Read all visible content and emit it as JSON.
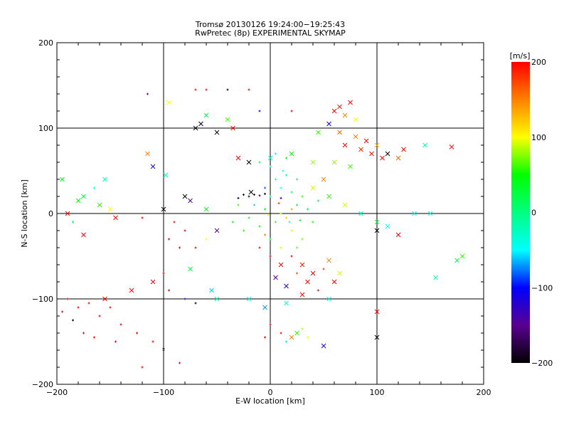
{
  "chart_data": {
    "type": "scatter",
    "title": "Tromsø 20130126 19:24:00−19:25:43",
    "subtitle": "RwPretec (8p) EXPERIMENTAL SKYMAP",
    "xlabel": "E-W location [km]",
    "ylabel": "N-S location [km]",
    "xlim": [
      -200,
      200
    ],
    "ylim": [
      -200,
      200
    ],
    "xticks": [
      -200,
      -100,
      0,
      100,
      200
    ],
    "yticks": [
      -200,
      -100,
      0,
      100,
      200
    ],
    "xtick_labels": [
      "−200",
      "−100",
      "0",
      "100",
      "200"
    ],
    "ytick_labels": [
      "−200",
      "−100",
      "0",
      "100",
      "200"
    ],
    "grid": true,
    "colorbar": {
      "label": "[m/s]",
      "range": [
        -200,
        200
      ],
      "ticks": [
        200,
        100,
        0,
        -100,
        -200
      ],
      "tick_labels": [
        "200",
        "100",
        "0",
        "−100",
        "−200"
      ],
      "stops": [
        [
          -200,
          "#000000"
        ],
        [
          -150,
          "#5a0090"
        ],
        [
          -100,
          "#0000ff"
        ],
        [
          -50,
          "#00ffff"
        ],
        [
          0,
          "#00ff80"
        ],
        [
          50,
          "#00ff00"
        ],
        [
          100,
          "#ffff00"
        ],
        [
          150,
          "#ff8000"
        ],
        [
          200,
          "#ff0000"
        ]
      ]
    },
    "point_format": [
      "x_km",
      "y_km",
      "velocity_m_s",
      "marker(0=dot,1=cross)"
    ],
    "points": [
      [
        5,
        40,
        -40,
        0
      ],
      [
        10,
        30,
        -50,
        0
      ],
      [
        15,
        45,
        -30,
        0
      ],
      [
        0,
        20,
        -20,
        0
      ],
      [
        20,
        25,
        10,
        0
      ],
      [
        25,
        10,
        30,
        0
      ],
      [
        -5,
        5,
        50,
        0
      ],
      [
        10,
        0,
        80,
        0
      ],
      [
        15,
        -5,
        120,
        0
      ],
      [
        5,
        -10,
        60,
        0
      ],
      [
        -10,
        -15,
        40,
        0
      ],
      [
        20,
        -20,
        90,
        0
      ],
      [
        30,
        -30,
        70,
        0
      ],
      [
        -15,
        10,
        -60,
        0
      ],
      [
        0,
        55,
        -10,
        0
      ],
      [
        -10,
        60,
        20,
        0
      ],
      [
        12,
        50,
        -45,
        0
      ],
      [
        25,
        40,
        0,
        0
      ],
      [
        30,
        20,
        60,
        0
      ],
      [
        35,
        5,
        20,
        0
      ],
      [
        -20,
        -5,
        30,
        0
      ],
      [
        -25,
        -20,
        60,
        0
      ],
      [
        0,
        -30,
        40,
        0
      ],
      [
        10,
        -40,
        90,
        0
      ],
      [
        -5,
        -25,
        150,
        0
      ],
      [
        20,
        5,
        140,
        0
      ],
      [
        8,
        12,
        180,
        0
      ],
      [
        -2,
        -2,
        100,
        0
      ],
      [
        18,
        -10,
        -30,
        0
      ],
      [
        28,
        -8,
        40,
        0
      ],
      [
        40,
        -10,
        50,
        0
      ],
      [
        45,
        15,
        20,
        0
      ],
      [
        -30,
        10,
        60,
        0
      ],
      [
        -35,
        -10,
        40,
        0
      ],
      [
        5,
        70,
        -20,
        0
      ],
      [
        15,
        65,
        30,
        0
      ],
      [
        -5,
        30,
        -80,
        0
      ],
      [
        10,
        18,
        -110,
        0
      ],
      [
        25,
        -40,
        70,
        0
      ],
      [
        -10,
        -40,
        200,
        0
      ],
      [
        -25,
        22,
        -200,
        0
      ],
      [
        -20,
        20,
        -190,
        0
      ],
      [
        -15,
        22,
        -200,
        0
      ],
      [
        -10,
        21,
        -180,
        0
      ],
      [
        -5,
        23,
        -200,
        0
      ],
      [
        -30,
        18,
        -200,
        0
      ],
      [
        -18,
        25,
        -200,
        1
      ],
      [
        20,
        -50,
        200,
        0
      ],
      [
        30,
        -60,
        190,
        1
      ],
      [
        40,
        -70,
        200,
        1
      ],
      [
        50,
        -65,
        180,
        0
      ],
      [
        35,
        -80,
        200,
        1
      ],
      [
        45,
        -90,
        200,
        0
      ],
      [
        55,
        -55,
        150,
        1
      ],
      [
        25,
        -70,
        170,
        0
      ],
      [
        60,
        -80,
        200,
        1
      ],
      [
        10,
        -60,
        200,
        1
      ],
      [
        15,
        -85,
        -120,
        1
      ],
      [
        5,
        -75,
        -150,
        1
      ],
      [
        30,
        -95,
        200,
        1
      ],
      [
        65,
        -70,
        90,
        1
      ],
      [
        0,
        -50,
        200,
        0
      ],
      [
        -190,
        -100,
        200,
        0
      ],
      [
        -180,
        -110,
        200,
        0
      ],
      [
        -170,
        -105,
        200,
        0
      ],
      [
        -160,
        -120,
        200,
        0
      ],
      [
        -150,
        -110,
        200,
        0
      ],
      [
        -140,
        -130,
        200,
        0
      ],
      [
        -175,
        -140,
        200,
        0
      ],
      [
        -185,
        -125,
        -200,
        0
      ],
      [
        -155,
        -100,
        200,
        1
      ],
      [
        -130,
        -90,
        200,
        1
      ],
      [
        -165,
        -145,
        200,
        0
      ],
      [
        -145,
        -150,
        200,
        0
      ],
      [
        -125,
        -140,
        200,
        0
      ],
      [
        -195,
        -115,
        200,
        0
      ],
      [
        -110,
        -150,
        200,
        0
      ],
      [
        -120,
        -180,
        200,
        0
      ],
      [
        -100,
        -160,
        -200,
        0
      ],
      [
        -85,
        -175,
        200,
        0
      ],
      [
        -190,
        0,
        200,
        1
      ],
      [
        -185,
        -10,
        20,
        0
      ],
      [
        -180,
        15,
        50,
        1
      ],
      [
        -175,
        20,
        20,
        1
      ],
      [
        -160,
        10,
        60,
        1
      ],
      [
        -155,
        40,
        -20,
        1
      ],
      [
        -165,
        30,
        -50,
        0
      ],
      [
        -150,
        5,
        100,
        1
      ],
      [
        -175,
        -25,
        200,
        1
      ],
      [
        -195,
        40,
        40,
        1
      ],
      [
        -145,
        -5,
        200,
        1
      ],
      [
        -120,
        -5,
        200,
        0
      ],
      [
        -100,
        5,
        -200,
        1
      ],
      [
        -90,
        -10,
        200,
        0
      ],
      [
        -80,
        -20,
        200,
        0
      ],
      [
        -95,
        -30,
        200,
        0
      ],
      [
        -85,
        -40,
        200,
        0
      ],
      [
        -70,
        -40,
        200,
        0
      ],
      [
        -60,
        -30,
        100,
        0
      ],
      [
        -50,
        -20,
        -150,
        1
      ],
      [
        -75,
        -65,
        20,
        1
      ],
      [
        -100,
        -70,
        200,
        0
      ],
      [
        -110,
        55,
        -120,
        1
      ],
      [
        -115,
        70,
        150,
        1
      ],
      [
        -98,
        45,
        -20,
        1
      ],
      [
        -80,
        20,
        -200,
        1
      ],
      [
        -75,
        15,
        -150,
        1
      ],
      [
        -60,
        5,
        40,
        1
      ],
      [
        -95,
        -90,
        200,
        0
      ],
      [
        -110,
        -80,
        200,
        1
      ],
      [
        -70,
        145,
        200,
        0
      ],
      [
        -60,
        145,
        200,
        0
      ],
      [
        -40,
        145,
        -200,
        0
      ],
      [
        -20,
        145,
        200,
        0
      ],
      [
        -115,
        140,
        -150,
        0
      ],
      [
        -95,
        130,
        100,
        1
      ],
      [
        -70,
        100,
        -200,
        1
      ],
      [
        -65,
        105,
        -200,
        1
      ],
      [
        -60,
        115,
        20,
        1
      ],
      [
        -40,
        110,
        60,
        1
      ],
      [
        -35,
        100,
        200,
        1
      ],
      [
        -50,
        95,
        -200,
        1
      ],
      [
        -10,
        120,
        -100,
        0
      ],
      [
        20,
        120,
        200,
        0
      ],
      [
        -30,
        65,
        200,
        1
      ],
      [
        -20,
        60,
        -200,
        1
      ],
      [
        0,
        65,
        -30,
        1
      ],
      [
        20,
        70,
        50,
        1
      ],
      [
        40,
        60,
        80,
        1
      ],
      [
        45,
        95,
        60,
        1
      ],
      [
        60,
        120,
        200,
        1
      ],
      [
        65,
        125,
        190,
        1
      ],
      [
        70,
        115,
        150,
        1
      ],
      [
        75,
        130,
        200,
        1
      ],
      [
        80,
        110,
        100,
        1
      ],
      [
        55,
        105,
        -100,
        1
      ],
      [
        65,
        95,
        160,
        1
      ],
      [
        70,
        80,
        200,
        1
      ],
      [
        80,
        90,
        150,
        1
      ],
      [
        90,
        85,
        200,
        1
      ],
      [
        85,
        75,
        180,
        1
      ],
      [
        95,
        70,
        200,
        1
      ],
      [
        100,
        80,
        130,
        1
      ],
      [
        105,
        65,
        200,
        1
      ],
      [
        110,
        70,
        -200,
        1
      ],
      [
        120,
        65,
        160,
        1
      ],
      [
        125,
        75,
        200,
        1
      ],
      [
        145,
        80,
        -20,
        1
      ],
      [
        170,
        78,
        200,
        1
      ],
      [
        60,
        60,
        80,
        1
      ],
      [
        75,
        55,
        60,
        1
      ],
      [
        50,
        40,
        150,
        1
      ],
      [
        40,
        30,
        90,
        1
      ],
      [
        55,
        20,
        60,
        1
      ],
      [
        70,
        10,
        90,
        1
      ],
      [
        85,
        0,
        -30,
        1
      ],
      [
        100,
        -10,
        20,
        1
      ],
      [
        110,
        -15,
        -50,
        1
      ],
      [
        120,
        -25,
        200,
        1
      ],
      [
        135,
        0,
        -40,
        1
      ],
      [
        150,
        0,
        -50,
        1
      ],
      [
        180,
        -50,
        60,
        1
      ],
      [
        175,
        -55,
        20,
        1
      ],
      [
        155,
        -75,
        -20,
        1
      ],
      [
        100,
        -20,
        -200,
        1
      ],
      [
        -55,
        -90,
        -60,
        1
      ],
      [
        -50,
        -100,
        -20,
        1
      ],
      [
        -20,
        -100,
        -40,
        1
      ],
      [
        -5,
        -110,
        -70,
        1
      ],
      [
        15,
        -105,
        -30,
        1
      ],
      [
        55,
        -100,
        -40,
        1
      ],
      [
        100,
        -115,
        200,
        1
      ],
      [
        100,
        -145,
        -200,
        1
      ],
      [
        50,
        -155,
        -120,
        1
      ],
      [
        10,
        -140,
        200,
        0
      ],
      [
        20,
        -145,
        150,
        1
      ],
      [
        25,
        -140,
        60,
        1
      ],
      [
        30,
        -135,
        80,
        0
      ],
      [
        -5,
        -145,
        200,
        0
      ],
      [
        0,
        -130,
        200,
        0
      ],
      [
        35,
        -145,
        100,
        0
      ],
      [
        15,
        -150,
        -20,
        0
      ],
      [
        -100,
        -158,
        -200,
        0
      ],
      [
        -70,
        -105,
        -200,
        0
      ],
      [
        -80,
        -100,
        -100,
        0
      ]
    ]
  }
}
